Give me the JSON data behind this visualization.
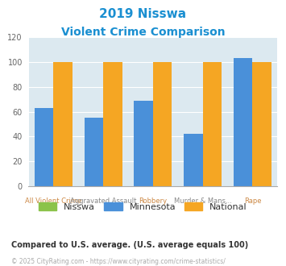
{
  "title_line1": "2019 Nisswa",
  "title_line2": "Violent Crime Comparison",
  "title_color": "#1a8fd1",
  "categories": [
    "All Violent Crime",
    "Aggravated Assault",
    "Robbery",
    "Murder & Mans...",
    "Rape"
  ],
  "cat_top": [
    "",
    "Aggravated Assault",
    "",
    "Murder & Mans...",
    ""
  ],
  "cat_bottom": [
    "All Violent Crime",
    "",
    "Robbery",
    "",
    "Rape"
  ],
  "nisswa": [
    0,
    0,
    0,
    0,
    0
  ],
  "minnesota": [
    63,
    55,
    69,
    42,
    103
  ],
  "national": [
    100,
    100,
    100,
    100,
    100
  ],
  "nisswa_color": "#8bc34a",
  "minnesota_color": "#4a90d9",
  "national_color": "#f5a623",
  "plot_bg": "#dce9f0",
  "ylim": [
    0,
    120
  ],
  "yticks": [
    0,
    20,
    40,
    60,
    80,
    100,
    120
  ],
  "bar_width": 0.38,
  "footnote": "Compared to U.S. average. (U.S. average equals 100)",
  "footnote_color": "#333333",
  "copyright": "© 2025 CityRating.com - https://www.cityrating.com/crime-statistics/",
  "copyright_color": "#aaaaaa",
  "legend_labels": [
    "Nisswa",
    "Minnesota",
    "National"
  ]
}
